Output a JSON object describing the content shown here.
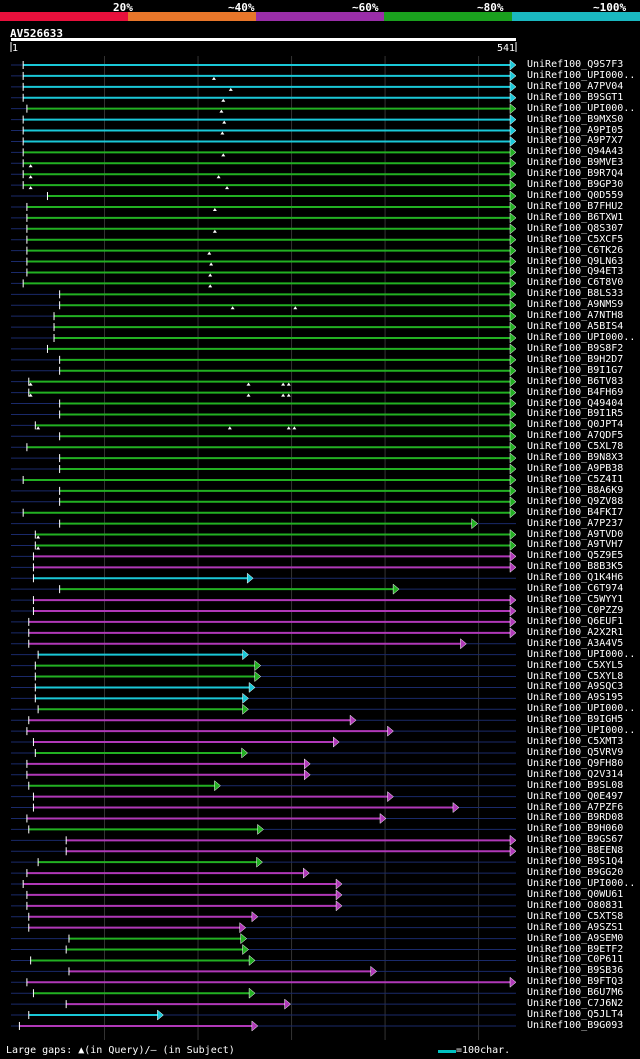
{
  "legend": {
    "labels": [
      "20%",
      "~40%",
      "~60%",
      "~80%",
      "~100%"
    ],
    "colors": [
      "#e8103c",
      "#e8762a",
      "#9a2ea8",
      "#1aa01e",
      "#1ab8c0"
    ]
  },
  "query": {
    "id": "AV526633",
    "start": "1",
    "end": "541",
    "length": 541
  },
  "footer": {
    "gaps_text": "Large gaps: ▲(in Query)/– (in Subject)",
    "scale_text": "=100char."
  },
  "chart_data": {
    "type": "alignment-overview",
    "x_range": [
      1,
      541
    ],
    "rows": [
      {
        "label": "UniRef100_Q9S7F3",
        "color": "cyan",
        "start": 14,
        "end": 541,
        "gaps": []
      },
      {
        "label": "UniRef100_UPI000..",
        "color": "cyan",
        "start": 14,
        "end": 541,
        "gaps": [
          218
        ]
      },
      {
        "label": "UniRef100_A7PV04",
        "color": "cyan",
        "start": 14,
        "end": 541,
        "gaps": [
          236
        ]
      },
      {
        "label": "UniRef100_B9SGT1",
        "color": "cyan",
        "start": 14,
        "end": 541,
        "gaps": [
          228
        ]
      },
      {
        "label": "UniRef100_UPI000..",
        "color": "green",
        "start": 18,
        "end": 541,
        "gaps": [
          226
        ]
      },
      {
        "label": "UniRef100_B9MXS0",
        "color": "cyan",
        "start": 14,
        "end": 541,
        "gaps": [
          229
        ]
      },
      {
        "label": "UniRef100_A9PI05",
        "color": "cyan",
        "start": 14,
        "end": 541,
        "gaps": [
          227
        ]
      },
      {
        "label": "UniRef100_A9P7X7",
        "color": "cyan",
        "start": 14,
        "end": 541,
        "gaps": []
      },
      {
        "label": "UniRef100_Q94A43",
        "color": "green",
        "start": 14,
        "end": 541,
        "gaps": [
          228
        ]
      },
      {
        "label": "UniRef100_B9MVE3",
        "color": "green",
        "start": 14,
        "end": 541,
        "gaps": [
          22
        ]
      },
      {
        "label": "UniRef100_B9R7Q4",
        "color": "green",
        "start": 14,
        "end": 541,
        "gaps": [
          22,
          223
        ]
      },
      {
        "label": "UniRef100_B9GP30",
        "color": "green",
        "start": 14,
        "end": 541,
        "gaps": [
          22,
          232
        ]
      },
      {
        "label": "UniRef100_Q0D559",
        "color": "green",
        "start": 40,
        "end": 541,
        "gaps": []
      },
      {
        "label": "UniRef100_B7FHU2",
        "color": "green",
        "start": 18,
        "end": 541,
        "gaps": [
          219
        ]
      },
      {
        "label": "UniRef100_B6TXW1",
        "color": "green",
        "start": 18,
        "end": 541,
        "gaps": []
      },
      {
        "label": "UniRef100_Q8S307",
        "color": "green",
        "start": 18,
        "end": 541,
        "gaps": [
          219
        ]
      },
      {
        "label": "UniRef100_C5XCF5",
        "color": "green",
        "start": 18,
        "end": 541,
        "gaps": []
      },
      {
        "label": "UniRef100_C6TK26",
        "color": "green",
        "start": 18,
        "end": 541,
        "gaps": [
          213
        ]
      },
      {
        "label": "UniRef100_Q9LN63",
        "color": "green",
        "start": 18,
        "end": 541,
        "gaps": [
          215
        ]
      },
      {
        "label": "UniRef100_Q94ET3",
        "color": "green",
        "start": 18,
        "end": 541,
        "gaps": [
          214
        ]
      },
      {
        "label": "UniRef100_C6T8V0",
        "color": "green",
        "start": 14,
        "end": 541,
        "gaps": [
          214
        ]
      },
      {
        "label": "UniRef100_B8LS33",
        "color": "green",
        "start": 53,
        "end": 541,
        "gaps": []
      },
      {
        "label": "UniRef100_A9NMS9",
        "color": "green",
        "start": 53,
        "end": 541,
        "gaps": [
          238,
          305
        ]
      },
      {
        "label": "UniRef100_A7NTH8",
        "color": "green",
        "start": 47,
        "end": 541,
        "gaps": []
      },
      {
        "label": "UniRef100_A5BIS4",
        "color": "green",
        "start": 47,
        "end": 541,
        "gaps": []
      },
      {
        "label": "UniRef100_UPI000..",
        "color": "green",
        "start": 47,
        "end": 541,
        "gaps": []
      },
      {
        "label": "UniRef100_B9S8F2",
        "color": "green",
        "start": 40,
        "end": 541,
        "gaps": []
      },
      {
        "label": "UniRef100_B9H2D7",
        "color": "green",
        "start": 53,
        "end": 541,
        "gaps": []
      },
      {
        "label": "UniRef100_B9I1G7",
        "color": "green",
        "start": 53,
        "end": 541,
        "gaps": []
      },
      {
        "label": "UniRef100_B6TV83",
        "color": "green",
        "start": 20,
        "end": 541,
        "gaps": [
          22,
          255,
          292,
          298
        ]
      },
      {
        "label": "UniRef100_B4FH69",
        "color": "green",
        "start": 20,
        "end": 541,
        "gaps": [
          22,
          255,
          292,
          298
        ]
      },
      {
        "label": "UniRef100_Q49404",
        "color": "green",
        "start": 53,
        "end": 541,
        "gaps": []
      },
      {
        "label": "UniRef100_B9I1R5",
        "color": "green",
        "start": 53,
        "end": 541,
        "gaps": []
      },
      {
        "label": "UniRef100_Q0JPT4",
        "color": "green",
        "start": 27,
        "end": 541,
        "gaps": [
          30,
          235,
          298,
          304
        ]
      },
      {
        "label": "UniRef100_A7QDF5",
        "color": "green",
        "start": 53,
        "end": 541,
        "gaps": []
      },
      {
        "label": "UniRef100_C5XL78",
        "color": "green",
        "start": 18,
        "end": 541,
        "gaps": []
      },
      {
        "label": "UniRef100_B9N8X3",
        "color": "green",
        "start": 53,
        "end": 541,
        "gaps": []
      },
      {
        "label": "UniRef100_A9PB38",
        "color": "green",
        "start": 53,
        "end": 541,
        "gaps": []
      },
      {
        "label": "UniRef100_C5Z4I1",
        "color": "green",
        "start": 14,
        "end": 541,
        "gaps": []
      },
      {
        "label": "UniRef100_B8A6K9",
        "color": "green",
        "start": 53,
        "end": 541,
        "gaps": []
      },
      {
        "label": "UniRef100_Q9ZV88",
        "color": "green",
        "start": 53,
        "end": 541,
        "gaps": []
      },
      {
        "label": "UniRef100_B4FKI7",
        "color": "green",
        "start": 14,
        "end": 541,
        "gaps": []
      },
      {
        "label": "UniRef100_A7P237",
        "color": "green",
        "start": 53,
        "end": 500,
        "gaps": []
      },
      {
        "label": "UniRef100_A9TVD0",
        "color": "green",
        "start": 27,
        "end": 541,
        "gaps": [
          30
        ]
      },
      {
        "label": "UniRef100_A9TVH7",
        "color": "green",
        "start": 27,
        "end": 541,
        "gaps": [
          30
        ]
      },
      {
        "label": "UniRef100_Q5Z9E5",
        "color": "purple",
        "start": 25,
        "end": 541,
        "gaps": []
      },
      {
        "label": "UniRef100_B8B3K5",
        "color": "purple",
        "start": 25,
        "end": 541,
        "gaps": []
      },
      {
        "label": "UniRef100_Q1K4H6",
        "color": "cyan",
        "start": 25,
        "end": 260,
        "gaps": []
      },
      {
        "label": "UniRef100_C6T974",
        "color": "green",
        "start": 53,
        "end": 416,
        "gaps": []
      },
      {
        "label": "UniRef100_C5WYY1",
        "color": "purple",
        "start": 25,
        "end": 541,
        "gaps": []
      },
      {
        "label": "UniRef100_C0PZZ9",
        "color": "purple",
        "start": 25,
        "end": 541,
        "gaps": []
      },
      {
        "label": "UniRef100_Q6EUF1",
        "color": "purple",
        "start": 20,
        "end": 541,
        "gaps": []
      },
      {
        "label": "UniRef100_A2X2R1",
        "color": "purple",
        "start": 20,
        "end": 541,
        "gaps": []
      },
      {
        "label": "UniRef100_A3A4V5",
        "color": "purple",
        "start": 20,
        "end": 488,
        "gaps": []
      },
      {
        "label": "UniRef100_UPI000..",
        "color": "cyan",
        "start": 30,
        "end": 255,
        "gaps": []
      },
      {
        "label": "UniRef100_C5XYL5",
        "color": "green",
        "start": 27,
        "end": 268,
        "gaps": []
      },
      {
        "label": "UniRef100_C5XYL8",
        "color": "green",
        "start": 27,
        "end": 268,
        "gaps": []
      },
      {
        "label": "UniRef100_A9SQC3",
        "color": "cyan",
        "start": 27,
        "end": 262,
        "gaps": []
      },
      {
        "label": "UniRef100_A9S195",
        "color": "cyan",
        "start": 27,
        "end": 255,
        "gaps": []
      },
      {
        "label": "UniRef100_UPI000..",
        "color": "green",
        "start": 30,
        "end": 255,
        "gaps": []
      },
      {
        "label": "UniRef100_B9IGH5",
        "color": "purple",
        "start": 20,
        "end": 370,
        "gaps": []
      },
      {
        "label": "UniRef100_UPI000..",
        "color": "purple",
        "start": 18,
        "end": 410,
        "gaps": []
      },
      {
        "label": "UniRef100_C5XMT3",
        "color": "purple",
        "start": 25,
        "end": 352,
        "gaps": []
      },
      {
        "label": "UniRef100_Q5VRV9",
        "color": "green",
        "start": 27,
        "end": 254,
        "gaps": []
      },
      {
        "label": "UniRef100_Q9FH80",
        "color": "purple",
        "start": 18,
        "end": 321,
        "gaps": []
      },
      {
        "label": "UniRef100_Q2V314",
        "color": "purple",
        "start": 18,
        "end": 321,
        "gaps": []
      },
      {
        "label": "UniRef100_B9SL08",
        "color": "green",
        "start": 20,
        "end": 225,
        "gaps": []
      },
      {
        "label": "UniRef100_Q0E497",
        "color": "purple",
        "start": 25,
        "end": 410,
        "gaps": []
      },
      {
        "label": "UniRef100_A7PZF6",
        "color": "purple",
        "start": 25,
        "end": 480,
        "gaps": []
      },
      {
        "label": "UniRef100_B9RD08",
        "color": "purple",
        "start": 18,
        "end": 402,
        "gaps": []
      },
      {
        "label": "UniRef100_B9H060",
        "color": "green",
        "start": 20,
        "end": 271,
        "gaps": []
      },
      {
        "label": "UniRef100_B9GS67",
        "color": "purple",
        "start": 60,
        "end": 541,
        "gaps": []
      },
      {
        "label": "UniRef100_B8EEN8",
        "color": "purple",
        "start": 60,
        "end": 541,
        "gaps": []
      },
      {
        "label": "UniRef100_B9S1Q4",
        "color": "green",
        "start": 30,
        "end": 270,
        "gaps": []
      },
      {
        "label": "UniRef100_B9GG20",
        "color": "purple",
        "start": 18,
        "end": 320,
        "gaps": []
      },
      {
        "label": "UniRef100_UPI000..",
        "color": "purple",
        "start": 14,
        "end": 355,
        "gaps": []
      },
      {
        "label": "UniRef100_Q0WU61",
        "color": "purple",
        "start": 18,
        "end": 355,
        "gaps": []
      },
      {
        "label": "UniRef100_O80831",
        "color": "purple",
        "start": 18,
        "end": 355,
        "gaps": []
      },
      {
        "label": "UniRef100_C5XTS8",
        "color": "purple",
        "start": 20,
        "end": 265,
        "gaps": []
      },
      {
        "label": "UniRef100_A9SZS1",
        "color": "purple",
        "start": 20,
        "end": 252,
        "gaps": []
      },
      {
        "label": "UniRef100_A9SEM0",
        "color": "green",
        "start": 63,
        "end": 253,
        "gaps": []
      },
      {
        "label": "UniRef100_B9ETF2",
        "color": "green",
        "start": 60,
        "end": 255,
        "gaps": []
      },
      {
        "label": "UniRef100_C0P611",
        "color": "green",
        "start": 22,
        "end": 262,
        "gaps": []
      },
      {
        "label": "UniRef100_B9SB36",
        "color": "purple",
        "start": 63,
        "end": 392,
        "gaps": []
      },
      {
        "label": "UniRef100_B9FTQ3",
        "color": "purple",
        "start": 18,
        "end": 541,
        "gaps": []
      },
      {
        "label": "UniRef100_B6U7M6",
        "color": "green",
        "start": 25,
        "end": 262,
        "gaps": []
      },
      {
        "label": "UniRef100_C7J6N2",
        "color": "purple",
        "start": 60,
        "end": 300,
        "gaps": []
      },
      {
        "label": "UniRef100_Q5JLT4",
        "color": "cyan",
        "start": 20,
        "end": 164,
        "gaps": []
      },
      {
        "label": "UniRef100_B9G093",
        "color": "purple",
        "start": 10,
        "end": 265,
        "gaps": []
      }
    ]
  }
}
